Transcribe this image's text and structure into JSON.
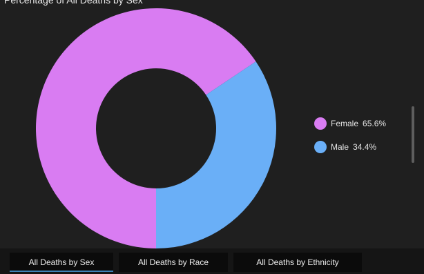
{
  "chart_data": {
    "type": "pie",
    "title": "Percentage of All Deaths by Sex",
    "slices": [
      {
        "label": "Female",
        "value": 65.6,
        "display": "65.6%",
        "color": "#d97cf2"
      },
      {
        "label": "Male",
        "value": 34.4,
        "display": "34.4%",
        "color": "#6aaff7"
      }
    ],
    "legend_position": "right"
  },
  "tabs": [
    {
      "label": "All Deaths by Sex",
      "active": true
    },
    {
      "label": "All Deaths by Race",
      "active": false
    },
    {
      "label": "All Deaths by Ethnicity",
      "active": false
    }
  ],
  "colors": {
    "background": "#1f1f1f",
    "tab_background": "#0b0b0b",
    "active_tab_underline": "#3b82b8"
  }
}
